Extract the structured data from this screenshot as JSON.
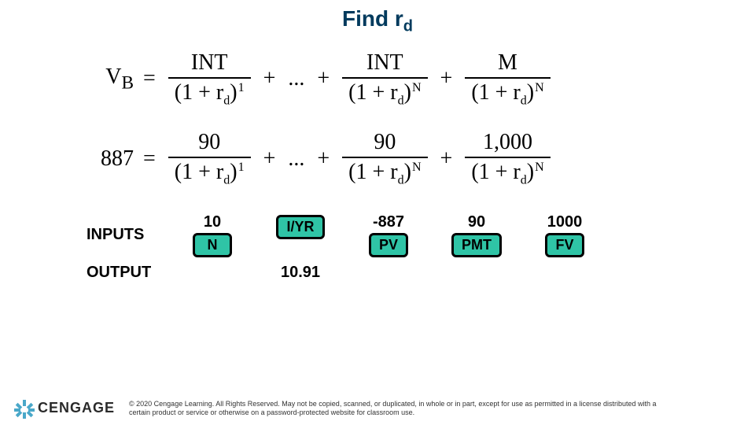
{
  "title_main": "Find r",
  "title_sub": "d",
  "title_color": "#003a5d",
  "eq1": {
    "lhs": "V",
    "lhs_sub": "B",
    "t1_num": "INT",
    "t1_exp": "1",
    "t2_num": "INT",
    "t2_exp": "N",
    "t3_num": "M",
    "t3_exp": "N",
    "den_base": "(1 + r",
    "den_sub": "d",
    "den_close": ")"
  },
  "eq2": {
    "lhs": "887",
    "t1_num": "90",
    "t1_exp": "1",
    "t2_num": "90",
    "t2_exp": "N",
    "t3_num": "1,000",
    "t3_exp": "N",
    "den_base": "(1 + r",
    "den_sub": "d",
    "den_close": ")"
  },
  "calc": {
    "inputs_label": "INPUTS",
    "output_label": "OUTPUT",
    "cols": [
      {
        "value": "10",
        "key": "N"
      },
      {
        "value": "",
        "key": "I/YR"
      },
      {
        "value": "-887",
        "key": "PV"
      },
      {
        "value": "90",
        "key": "PMT"
      },
      {
        "value": "1000",
        "key": "FV"
      }
    ],
    "output_value": "10.91",
    "key_bg": "#2fc4a6",
    "key_border": "#000000"
  },
  "footer": {
    "brand": "CENGAGE",
    "logo_color": "#4aa8c9",
    "copyright": "© 2020 Cengage Learning. All Rights Reserved. May not be copied, scanned, or duplicated, in whole or in part, except for use as permitted in a license distributed with a certain product or service or otherwise on a password-protected website for classroom use."
  }
}
